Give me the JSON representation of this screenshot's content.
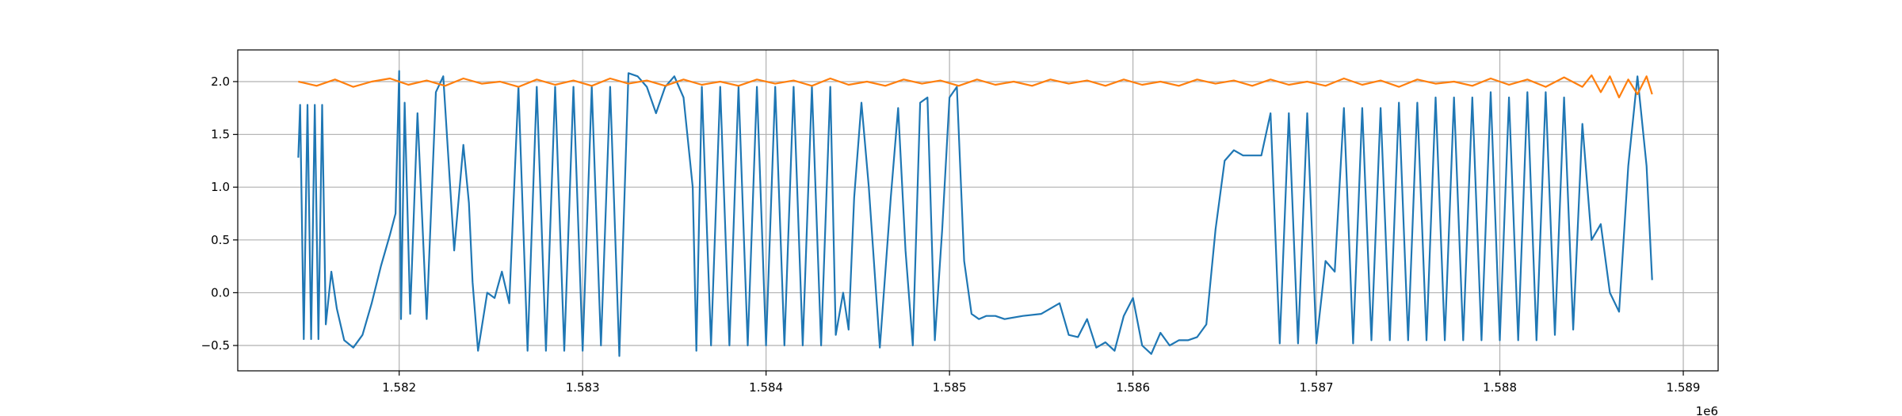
{
  "chart_data": {
    "type": "line",
    "title": "",
    "xlabel": "",
    "ylabel": "",
    "x_offset_label": "1e6",
    "xlim": [
      1581120,
      1589190
    ],
    "ylim": [
      -0.74,
      2.3
    ],
    "x_ticks": [
      1582000,
      1583000,
      1584000,
      1585000,
      1586000,
      1587000,
      1588000,
      1589000
    ],
    "x_tick_labels": [
      "1.582",
      "1.583",
      "1.584",
      "1.585",
      "1.586",
      "1.587",
      "1.588",
      "1.589"
    ],
    "y_ticks": [
      -0.5,
      0.0,
      0.5,
      1.0,
      1.5,
      2.0
    ],
    "y_tick_labels": [
      "−0.5",
      "0.0",
      "0.5",
      "1.0",
      "1.5",
      "2.0"
    ],
    "grid": true,
    "series": [
      {
        "color": "#1f77b4",
        "x": [
          1581450,
          1581460,
          1581480,
          1581500,
          1581520,
          1581540,
          1581560,
          1581580,
          1581600,
          1581630,
          1581660,
          1581700,
          1581750,
          1581800,
          1581850,
          1581900,
          1581950,
          1581980,
          1582000,
          1582010,
          1582030,
          1582060,
          1582100,
          1582150,
          1582200,
          1582240,
          1582300,
          1582350,
          1582380,
          1582400,
          1582430,
          1582480,
          1582520,
          1582560,
          1582600,
          1582650,
          1582700,
          1582750,
          1582800,
          1582850,
          1582900,
          1582950,
          1583000,
          1583050,
          1583100,
          1583150,
          1583200,
          1583250,
          1583300,
          1583350,
          1583400,
          1583450,
          1583500,
          1583550,
          1583600,
          1583620,
          1583650,
          1583700,
          1583750,
          1583800,
          1583850,
          1583900,
          1583950,
          1584000,
          1584050,
          1584100,
          1584150,
          1584200,
          1584250,
          1584300,
          1584350,
          1584380,
          1584420,
          1584450,
          1584480,
          1584520,
          1584560,
          1584620,
          1584680,
          1584720,
          1584760,
          1584800,
          1584840,
          1584880,
          1584920,
          1584960,
          1585000,
          1585040,
          1585080,
          1585120,
          1585160,
          1585200,
          1585250,
          1585300,
          1585400,
          1585500,
          1585600,
          1585650,
          1585700,
          1585750,
          1585800,
          1585850,
          1585900,
          1585950,
          1586000,
          1586050,
          1586100,
          1586150,
          1586200,
          1586250,
          1586300,
          1586350,
          1586400,
          1586450,
          1586500,
          1586550,
          1586600,
          1586650,
          1586700,
          1586750,
          1586800,
          1586850,
          1586900,
          1586950,
          1587000,
          1587050,
          1587100,
          1587150,
          1587200,
          1587250,
          1587300,
          1587350,
          1587400,
          1587450,
          1587500,
          1587550,
          1587600,
          1587650,
          1587700,
          1587750,
          1587800,
          1587850,
          1587900,
          1587950,
          1588000,
          1588050,
          1588100,
          1588150,
          1588200,
          1588250,
          1588300,
          1588350,
          1588400,
          1588450,
          1588500,
          1588550,
          1588600,
          1588650,
          1588700,
          1588750,
          1588800,
          1588830
        ],
        "y": [
          1.28,
          1.78,
          -0.44,
          1.78,
          -0.44,
          1.78,
          -0.44,
          1.78,
          -0.3,
          0.2,
          -0.15,
          -0.45,
          -0.52,
          -0.4,
          -0.1,
          0.25,
          0.55,
          0.75,
          2.1,
          -0.25,
          1.8,
          -0.2,
          1.7,
          -0.25,
          1.9,
          2.05,
          0.4,
          1.4,
          0.85,
          0.1,
          -0.55,
          0.0,
          -0.05,
          0.2,
          -0.1,
          1.95,
          -0.55,
          1.95,
          -0.55,
          1.95,
          -0.55,
          1.95,
          -0.55,
          1.95,
          -0.5,
          1.95,
          -0.6,
          2.08,
          2.05,
          1.95,
          1.7,
          1.95,
          2.05,
          1.85,
          1.0,
          -0.55,
          1.95,
          -0.5,
          1.95,
          -0.5,
          1.95,
          -0.5,
          1.95,
          -0.5,
          1.95,
          -0.5,
          1.95,
          -0.5,
          1.95,
          -0.5,
          1.95,
          -0.4,
          0.0,
          -0.35,
          0.9,
          1.8,
          1.0,
          -0.52,
          0.9,
          1.75,
          0.4,
          -0.5,
          1.8,
          1.85,
          -0.45,
          0.6,
          1.85,
          1.95,
          0.3,
          -0.2,
          -0.25,
          -0.22,
          -0.22,
          -0.25,
          -0.22,
          -0.2,
          -0.1,
          -0.4,
          -0.42,
          -0.25,
          -0.52,
          -0.47,
          -0.55,
          -0.22,
          -0.05,
          -0.5,
          -0.58,
          -0.38,
          -0.5,
          -0.45,
          -0.45,
          -0.42,
          -0.3,
          0.6,
          1.25,
          1.35,
          1.3,
          1.3,
          1.3,
          1.7,
          -0.48,
          1.7,
          -0.48,
          1.7,
          -0.48,
          0.3,
          0.2,
          1.75,
          -0.48,
          1.75,
          -0.45,
          1.75,
          -0.45,
          1.8,
          -0.45,
          1.8,
          -0.45,
          1.85,
          -0.45,
          1.85,
          -0.45,
          1.85,
          -0.45,
          1.9,
          -0.45,
          1.85,
          -0.45,
          1.9,
          -0.45,
          1.9,
          -0.4,
          1.85,
          -0.35,
          1.6,
          0.5,
          0.65,
          0.0,
          -0.18,
          1.2,
          2.05,
          1.2,
          0.12
        ]
      },
      {
        "color": "#ff7f0e",
        "x": [
          1581450,
          1581550,
          1581650,
          1581750,
          1581850,
          1581950,
          1582050,
          1582150,
          1582250,
          1582350,
          1582450,
          1582550,
          1582650,
          1582750,
          1582850,
          1582950,
          1583050,
          1583150,
          1583250,
          1583350,
          1583450,
          1583550,
          1583650,
          1583750,
          1583850,
          1583950,
          1584050,
          1584150,
          1584250,
          1584350,
          1584450,
          1584550,
          1584650,
          1584750,
          1584850,
          1584950,
          1585050,
          1585150,
          1585250,
          1585350,
          1585450,
          1585550,
          1585650,
          1585750,
          1585850,
          1585950,
          1586050,
          1586150,
          1586250,
          1586350,
          1586450,
          1586550,
          1586650,
          1586750,
          1586850,
          1586950,
          1587050,
          1587150,
          1587250,
          1587350,
          1587450,
          1587550,
          1587650,
          1587750,
          1587850,
          1587950,
          1588050,
          1588150,
          1588250,
          1588350,
          1588450,
          1588500,
          1588550,
          1588600,
          1588650,
          1588700,
          1588750,
          1588800,
          1588830
        ],
        "y": [
          2.0,
          1.96,
          2.02,
          1.95,
          2.0,
          2.03,
          1.97,
          2.01,
          1.96,
          2.03,
          1.98,
          2.0,
          1.95,
          2.02,
          1.97,
          2.01,
          1.96,
          2.03,
          1.98,
          2.01,
          1.96,
          2.02,
          1.97,
          2.0,
          1.96,
          2.02,
          1.98,
          2.01,
          1.96,
          2.03,
          1.97,
          2.0,
          1.96,
          2.02,
          1.98,
          2.01,
          1.96,
          2.02,
          1.97,
          2.0,
          1.96,
          2.02,
          1.98,
          2.01,
          1.96,
          2.02,
          1.97,
          2.0,
          1.96,
          2.02,
          1.98,
          2.01,
          1.96,
          2.02,
          1.97,
          2.0,
          1.96,
          2.03,
          1.97,
          2.01,
          1.95,
          2.02,
          1.98,
          2.0,
          1.96,
          2.03,
          1.97,
          2.02,
          1.95,
          2.04,
          1.95,
          2.06,
          1.9,
          2.05,
          1.85,
          2.02,
          1.88,
          2.05,
          1.88
        ]
      }
    ]
  }
}
